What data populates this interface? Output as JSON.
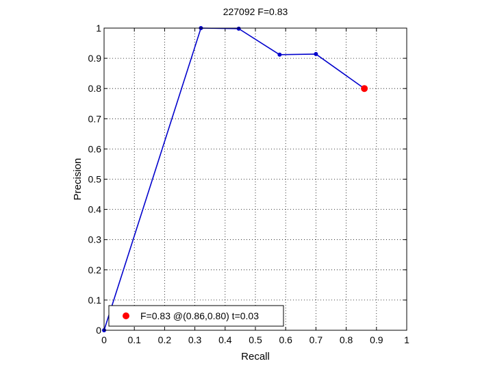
{
  "chart_data": {
    "type": "line",
    "title": "227092 F=0.83",
    "xlabel": "Recall",
    "ylabel": "Precision",
    "xlim": [
      0,
      1
    ],
    "ylim": [
      0,
      1
    ],
    "grid": true,
    "xticks": [
      "0",
      "0.1",
      "0.2",
      "0.3",
      "0.4",
      "0.5",
      "0.6",
      "0.7",
      "0.8",
      "0.9",
      "1"
    ],
    "yticks": [
      "0",
      "0.1",
      "0.2",
      "0.3",
      "0.4",
      "0.5",
      "0.6",
      "0.7",
      "0.8",
      "0.9",
      "1"
    ],
    "series": [
      {
        "color": "#0000cc",
        "x": [
          0,
          0.32,
          0.445,
          0.58,
          0.7,
          0.86
        ],
        "y": [
          0,
          1.0,
          0.998,
          0.912,
          0.914,
          0.8
        ]
      }
    ],
    "best_point": {
      "x": 0.86,
      "y": 0.8,
      "color": "#ff0000"
    },
    "legend": {
      "placement": "bottom-left",
      "entries": [
        "F=0.83 @(0.86,0.80) t=0.03"
      ]
    }
  }
}
